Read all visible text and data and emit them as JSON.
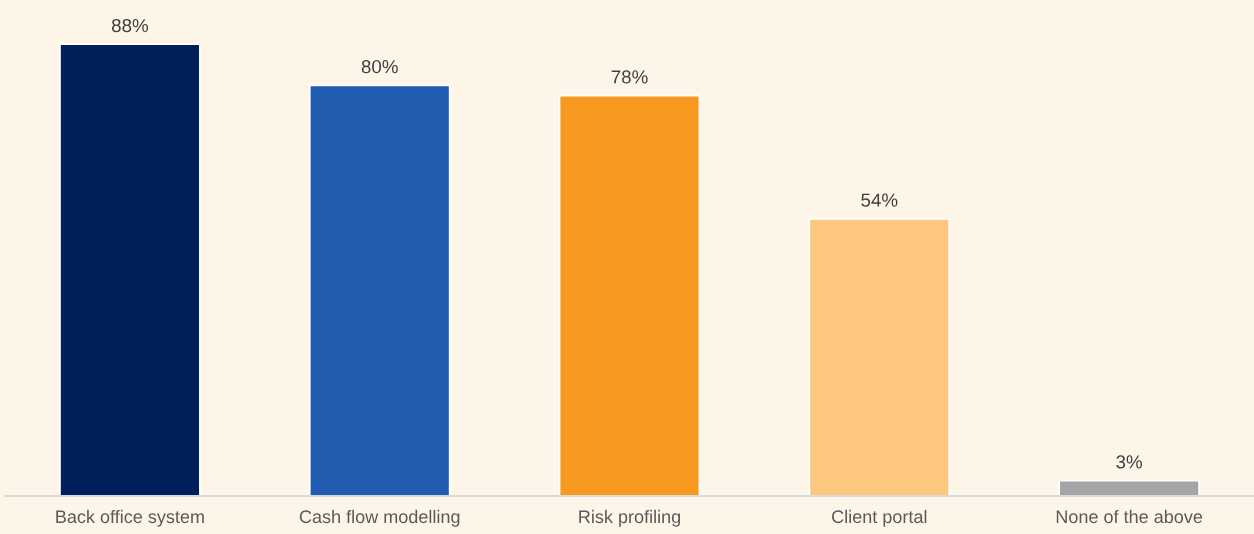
{
  "chart_data": {
    "type": "bar",
    "categories": [
      "Back office system",
      "Cash flow modelling",
      "Risk profiling",
      "Client portal",
      "None of the above"
    ],
    "values": [
      88,
      80,
      78,
      54,
      3
    ],
    "colors": [
      "#00205c",
      "#215cb0",
      "#f7991f",
      "#fdc77f",
      "#a5a5a5"
    ],
    "value_labels": [
      "88%",
      "80%",
      "78%",
      "54%",
      "3%"
    ]
  }
}
